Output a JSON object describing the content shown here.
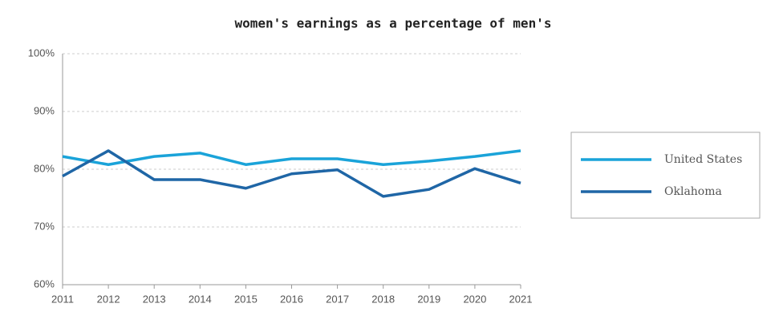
{
  "chart_data": {
    "type": "line",
    "title": "women's earnings as a percentage of men's",
    "x": [
      2011,
      2012,
      2013,
      2014,
      2015,
      2016,
      2017,
      2018,
      2019,
      2020,
      2021
    ],
    "xlim": [
      2011,
      2021
    ],
    "xticks": [
      2011,
      2012,
      2013,
      2014,
      2015,
      2016,
      2017,
      2018,
      2019,
      2020,
      2021
    ],
    "ylim": [
      60,
      100
    ],
    "yticks": [
      {
        "value": 60,
        "label": "60%"
      },
      {
        "value": 70,
        "label": "70%"
      },
      {
        "value": 80,
        "label": "80%"
      },
      {
        "value": 90,
        "label": "90%"
      },
      {
        "value": 100,
        "label": "100%"
      }
    ],
    "grid": true,
    "legend": "right",
    "series": [
      {
        "name": "United States",
        "color": "#1aa3d9",
        "values": [
          82.2,
          80.8,
          82.2,
          82.8,
          80.8,
          81.8,
          81.8,
          80.8,
          81.4,
          82.2,
          83.2
        ]
      },
      {
        "name": "Oklahoma",
        "color": "#1f66a6",
        "values": [
          78.8,
          83.2,
          78.2,
          78.2,
          76.7,
          79.2,
          79.9,
          75.3,
          76.5,
          80.1,
          77.6
        ]
      }
    ]
  }
}
